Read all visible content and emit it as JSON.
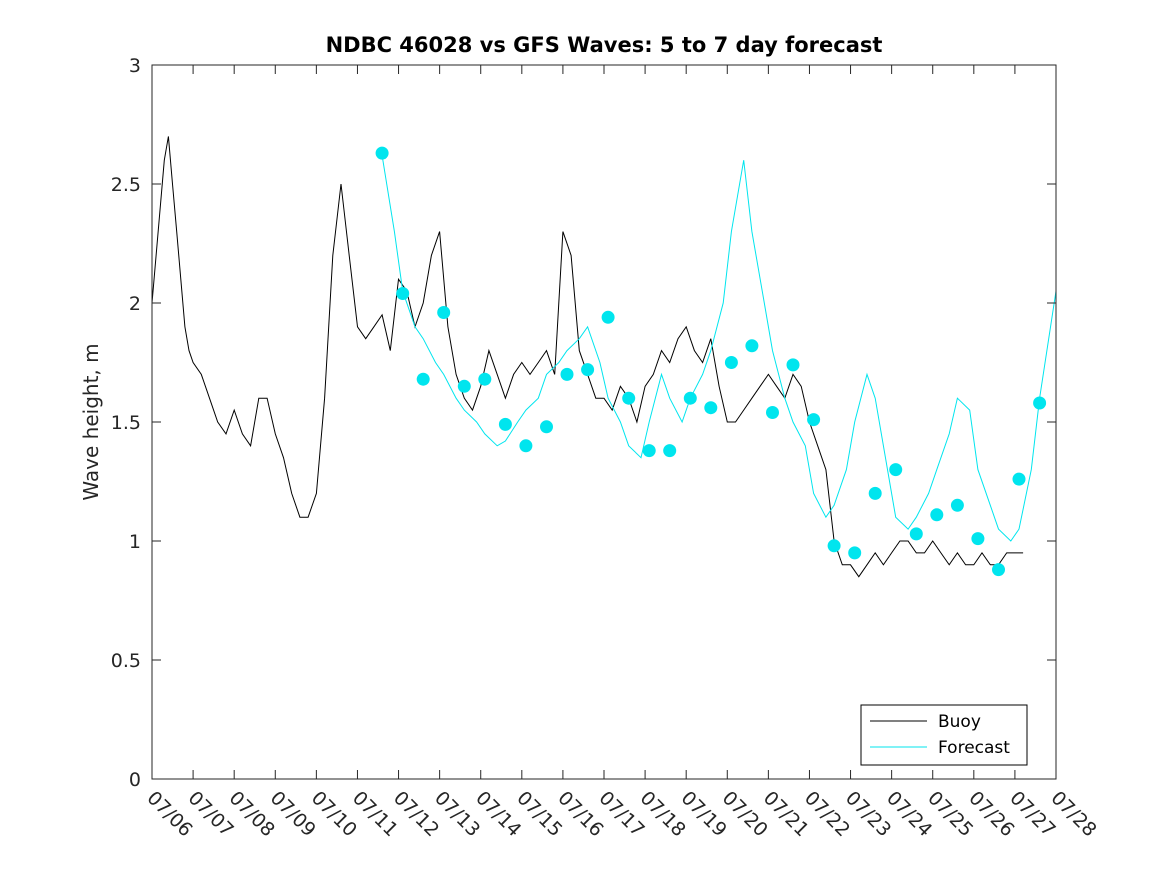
{
  "chart_data": {
    "type": "line",
    "title": "NDBC 46028 vs GFS Waves: 5 to 7 day forecast",
    "xlabel": "",
    "ylabel": "Wave height, m",
    "xlim": [
      0,
      22
    ],
    "ylim": [
      0,
      3
    ],
    "y_ticks": [
      0,
      0.5,
      1,
      1.5,
      2,
      2.5,
      3
    ],
    "x_tick_labels": [
      "07/06",
      "07/07",
      "07/08",
      "07/09",
      "07/10",
      "07/11",
      "07/12",
      "07/13",
      "07/14",
      "07/15",
      "07/16",
      "07/17",
      "07/18",
      "07/19",
      "07/20",
      "07/21",
      "07/22",
      "07/23",
      "07/24",
      "07/25",
      "07/26",
      "07/27",
      "07/28"
    ],
    "legend": {
      "placement": "bottom-right",
      "entries": [
        "Buoy",
        "Forecast"
      ]
    },
    "colors": {
      "buoy": "#000000",
      "forecast": "#00e5ee"
    },
    "series": [
      {
        "name": "Buoy",
        "x": [
          0,
          0.1,
          0.2,
          0.3,
          0.4,
          0.5,
          0.6,
          0.7,
          0.8,
          0.9,
          1.0,
          1.2,
          1.4,
          1.6,
          1.8,
          2.0,
          2.2,
          2.4,
          2.6,
          2.8,
          3.0,
          3.2,
          3.4,
          3.6,
          3.8,
          4.0,
          4.2,
          4.4,
          4.6,
          4.8,
          5.0,
          5.2,
          5.4,
          5.6,
          5.8,
          6.0,
          6.2,
          6.4,
          6.6,
          6.8,
          7.0,
          7.2,
          7.4,
          7.6,
          7.8,
          8.0,
          8.2,
          8.4,
          8.6,
          8.8,
          9.0,
          9.2,
          9.4,
          9.6,
          9.8,
          10.0,
          10.2,
          10.4,
          10.6,
          10.8,
          11.0,
          11.2,
          11.4,
          11.6,
          11.8,
          12.0,
          12.2,
          12.4,
          12.6,
          12.8,
          13.0,
          13.2,
          13.4,
          13.6,
          13.8,
          14.0,
          14.2,
          14.4,
          14.6,
          14.8,
          15.0,
          15.2,
          15.4,
          15.6,
          15.8,
          16.0,
          16.2,
          16.4,
          16.6,
          16.8,
          17.0,
          17.2,
          17.4,
          17.6,
          17.8,
          18.0,
          18.2,
          18.4,
          18.6,
          18.8,
          19.0,
          19.2,
          19.4,
          19.6,
          19.8,
          20.0,
          20.2,
          20.4,
          20.6,
          20.8,
          21.0,
          21.2
        ],
        "values": [
          2.0,
          2.2,
          2.4,
          2.6,
          2.7,
          2.5,
          2.3,
          2.1,
          1.9,
          1.8,
          1.75,
          1.7,
          1.6,
          1.5,
          1.45,
          1.55,
          1.45,
          1.4,
          1.6,
          1.6,
          1.45,
          1.35,
          1.2,
          1.1,
          1.1,
          1.2,
          1.6,
          2.2,
          2.5,
          2.2,
          1.9,
          1.85,
          1.9,
          1.95,
          1.8,
          2.1,
          2.05,
          1.9,
          2.0,
          2.2,
          2.3,
          1.9,
          1.7,
          1.6,
          1.55,
          1.65,
          1.8,
          1.7,
          1.6,
          1.7,
          1.75,
          1.7,
          1.75,
          1.8,
          1.7,
          2.3,
          2.2,
          1.8,
          1.7,
          1.6,
          1.6,
          1.55,
          1.65,
          1.6,
          1.5,
          1.65,
          1.7,
          1.8,
          1.75,
          1.85,
          1.9,
          1.8,
          1.75,
          1.85,
          1.65,
          1.5,
          1.5,
          1.55,
          1.6,
          1.65,
          1.7,
          1.65,
          1.6,
          1.7,
          1.65,
          1.5,
          1.4,
          1.3,
          1.0,
          0.9,
          0.9,
          0.85,
          0.9,
          0.95,
          0.9,
          0.95,
          1.0,
          1.0,
          0.95,
          0.95,
          1.0,
          0.95,
          0.9,
          0.95,
          0.9,
          0.9,
          0.95,
          0.9,
          0.9,
          0.95,
          0.95,
          0.95
        ]
      },
      {
        "name": "Forecast",
        "x": [
          5.6,
          5.9,
          6.1,
          6.4,
          6.6,
          6.9,
          7.1,
          7.4,
          7.6,
          7.9,
          8.1,
          8.4,
          8.6,
          8.9,
          9.1,
          9.4,
          9.6,
          9.9,
          10.1,
          10.4,
          10.6,
          10.9,
          11.1,
          11.4,
          11.6,
          11.9,
          12.1,
          12.4,
          12.6,
          12.9,
          13.1,
          13.4,
          13.6,
          13.9,
          14.1,
          14.4,
          14.6,
          14.9,
          15.1,
          15.4,
          15.6,
          15.9,
          16.1,
          16.4,
          16.6,
          16.9,
          17.1,
          17.4,
          17.6,
          17.9,
          18.1,
          18.4,
          18.6,
          18.9,
          19.1,
          19.4,
          19.6,
          19.9,
          20.1,
          20.4,
          20.6,
          20.9,
          21.1,
          21.4,
          21.6,
          22.0
        ],
        "values": [
          2.62,
          2.3,
          2.05,
          1.9,
          1.85,
          1.75,
          1.7,
          1.6,
          1.55,
          1.5,
          1.45,
          1.4,
          1.42,
          1.5,
          1.55,
          1.6,
          1.7,
          1.75,
          1.8,
          1.85,
          1.9,
          1.75,
          1.6,
          1.5,
          1.4,
          1.35,
          1.5,
          1.7,
          1.6,
          1.5,
          1.6,
          1.7,
          1.8,
          2.0,
          2.3,
          2.6,
          2.3,
          2.0,
          1.8,
          1.6,
          1.5,
          1.4,
          1.2,
          1.1,
          1.15,
          1.3,
          1.5,
          1.7,
          1.6,
          1.3,
          1.1,
          1.05,
          1.1,
          1.2,
          1.3,
          1.45,
          1.6,
          1.55,
          1.3,
          1.15,
          1.05,
          1.0,
          1.05,
          1.3,
          1.6,
          2.05
        ]
      }
    ],
    "forecast_points": {
      "x": [
        5.6,
        6.1,
        6.6,
        7.1,
        7.6,
        8.1,
        8.6,
        9.1,
        9.6,
        10.1,
        10.6,
        11.1,
        11.6,
        12.1,
        12.6,
        13.1,
        13.6,
        14.1,
        14.6,
        15.1,
        15.6,
        16.1,
        16.6,
        17.1,
        17.6,
        18.1,
        18.6,
        19.1,
        19.6,
        20.1,
        20.6,
        21.1,
        21.6
      ],
      "values": [
        2.63,
        2.04,
        1.68,
        1.96,
        1.65,
        1.68,
        1.49,
        1.4,
        1.48,
        1.7,
        1.72,
        1.94,
        1.6,
        1.38,
        1.38,
        1.6,
        1.56,
        1.75,
        1.82,
        1.54,
        1.74,
        1.51,
        0.98,
        0.95,
        1.2,
        1.3,
        1.03,
        1.11,
        1.15,
        1.01,
        0.88,
        1.26,
        1.58
      ]
    }
  }
}
